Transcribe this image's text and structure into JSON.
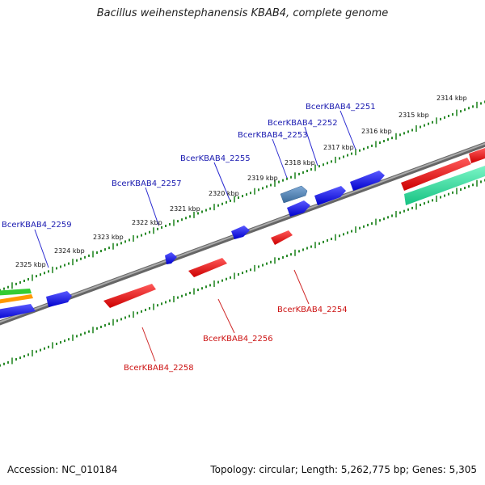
{
  "title": "Bacillus weihenstephanensis KBAB4, complete genome",
  "footer": {
    "accession": "Accession: NC_010184",
    "summary": "Topology: circular; Length: 5,262,775 bp; Genes: 5,305"
  },
  "colors": {
    "forward_gene": "#1a1af0",
    "reverse_gene": "#ee1111",
    "selected_gene": "#4a7fb5",
    "rna_teal": "#22dd99",
    "rna_green": "#33cc33",
    "rna_orange": "#ff9900",
    "backbone": "#888888",
    "tick": "#2a8a2a",
    "forward_label": "#1a1ab0",
    "reverse_label": "#cc1111"
  },
  "scale_labels": [
    "2314 kbp",
    "2315 kbp",
    "2316 kbp",
    "2317 kbp",
    "2318 kbp",
    "2319 kbp",
    "2320 kbp",
    "2321 kbp",
    "2322 kbp",
    "2323 kbp",
    "2324 kbp",
    "2325 kbp"
  ],
  "forward_gene_labels": [
    "BcerKBAB4_2251",
    "BcerKBAB4_2252",
    "BcerKBAB4_2253",
    "BcerKBAB4_2255",
    "BcerKBAB4_2257",
    "BcerKBAB4_2259"
  ],
  "reverse_gene_labels": [
    "BcerKBAB4_2254",
    "BcerKBAB4_2256",
    "BcerKBAB4_2258"
  ]
}
